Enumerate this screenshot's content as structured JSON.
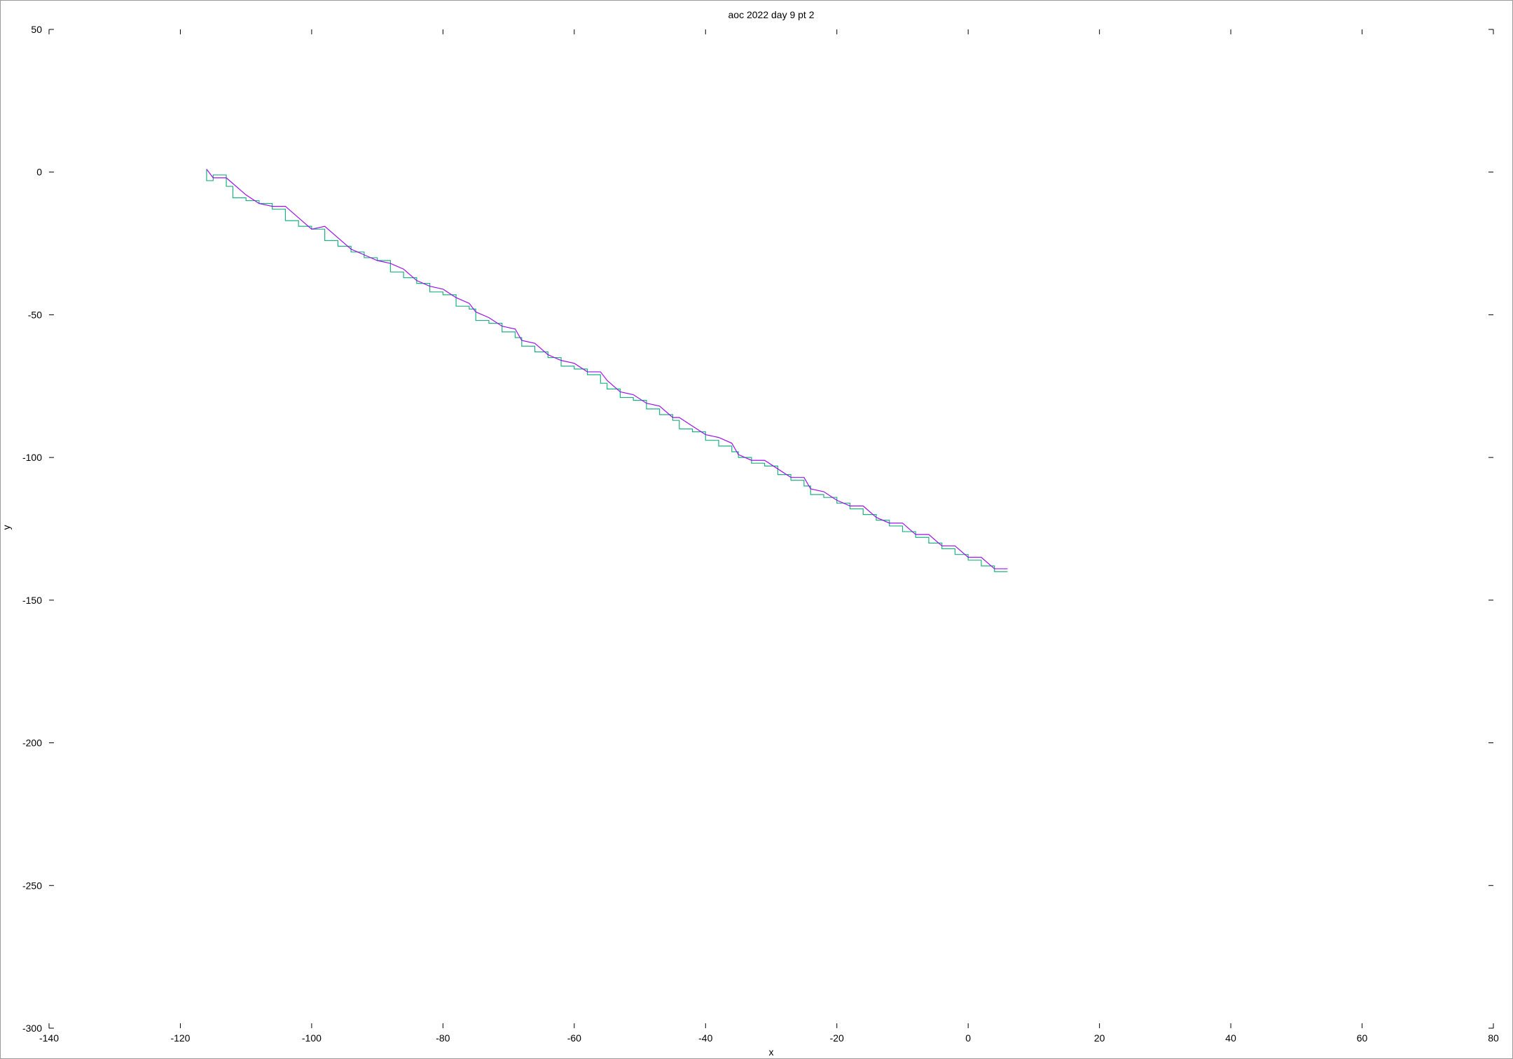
{
  "chart_data": {
    "type": "line",
    "title": "aoc 2022 day 9 pt 2",
    "xlabel": "x",
    "ylabel": "y",
    "xlim": [
      -140,
      80
    ],
    "ylim": [
      -300,
      50
    ],
    "xticks": [
      -140,
      -120,
      -100,
      -80,
      -60,
      -40,
      -20,
      0,
      20,
      40,
      60,
      80
    ],
    "yticks": [
      50,
      0,
      -50,
      -100,
      -150,
      -200,
      -250,
      -300
    ],
    "grid": false,
    "legend": "none",
    "colors": {
      "head": "#1db083",
      "tail": "#9a12ea"
    },
    "series": [
      {
        "id": "head",
        "style": "orthogonal-steps",
        "points": [
          [
            -116,
            1
          ],
          [
            -115,
            -3
          ],
          [
            -113,
            -1
          ],
          [
            -112,
            -5
          ],
          [
            -110,
            -9
          ],
          [
            -108,
            -10
          ],
          [
            -106,
            -11
          ],
          [
            -104,
            -13
          ],
          [
            -102,
            -17
          ],
          [
            -100,
            -19
          ],
          [
            -98,
            -20
          ],
          [
            -96,
            -24
          ],
          [
            -94,
            -26
          ],
          [
            -92,
            -28
          ],
          [
            -90,
            -30
          ],
          [
            -88,
            -31
          ],
          [
            -86,
            -35
          ],
          [
            -84,
            -37
          ],
          [
            -82,
            -39
          ],
          [
            -80,
            -42
          ],
          [
            -78,
            -43
          ],
          [
            -76,
            -47
          ],
          [
            -75,
            -48
          ],
          [
            -73,
            -52
          ],
          [
            -71,
            -53
          ],
          [
            -69,
            -56
          ],
          [
            -68,
            -58
          ],
          [
            -66,
            -61
          ],
          [
            -64,
            -63
          ],
          [
            -62,
            -65
          ],
          [
            -60,
            -68
          ],
          [
            -58,
            -69
          ],
          [
            -56,
            -71
          ],
          [
            -55,
            -74
          ],
          [
            -53,
            -76
          ],
          [
            -51,
            -79
          ],
          [
            -49,
            -80
          ],
          [
            -47,
            -83
          ],
          [
            -45,
            -85
          ],
          [
            -44,
            -87
          ],
          [
            -42,
            -90
          ],
          [
            -40,
            -91
          ],
          [
            -38,
            -94
          ],
          [
            -36,
            -96
          ],
          [
            -35,
            -98
          ],
          [
            -33,
            -100
          ],
          [
            -31,
            -102
          ],
          [
            -29,
            -103
          ],
          [
            -27,
            -106
          ],
          [
            -25,
            -108
          ],
          [
            -24,
            -110
          ],
          [
            -22,
            -113
          ],
          [
            -20,
            -114
          ],
          [
            -18,
            -116
          ],
          [
            -16,
            -118
          ],
          [
            -14,
            -120
          ],
          [
            -12,
            -122
          ],
          [
            -10,
            -124
          ],
          [
            -8,
            -126
          ],
          [
            -6,
            -128
          ],
          [
            -4,
            -130
          ],
          [
            -2,
            -132
          ],
          [
            0,
            -134
          ],
          [
            2,
            -136
          ],
          [
            4,
            -138
          ],
          [
            6,
            -140
          ]
        ]
      },
      {
        "id": "tail",
        "style": "polyline",
        "points": [
          [
            -116,
            1
          ],
          [
            -115,
            -2
          ],
          [
            -113,
            -2
          ],
          [
            -112,
            -4
          ],
          [
            -110,
            -8
          ],
          [
            -108,
            -11
          ],
          [
            -106,
            -12
          ],
          [
            -104,
            -12
          ],
          [
            -102,
            -16
          ],
          [
            -100,
            -20
          ],
          [
            -98,
            -19
          ],
          [
            -96,
            -23
          ],
          [
            -94,
            -27
          ],
          [
            -92,
            -29
          ],
          [
            -90,
            -31
          ],
          [
            -88,
            -32
          ],
          [
            -86,
            -34
          ],
          [
            -84,
            -38
          ],
          [
            -82,
            -40
          ],
          [
            -80,
            -41
          ],
          [
            -78,
            -44
          ],
          [
            -76,
            -46
          ],
          [
            -75,
            -49
          ],
          [
            -73,
            -51
          ],
          [
            -71,
            -54
          ],
          [
            -69,
            -55
          ],
          [
            -68,
            -59
          ],
          [
            -66,
            -60
          ],
          [
            -64,
            -64
          ],
          [
            -62,
            -66
          ],
          [
            -60,
            -67
          ],
          [
            -58,
            -70
          ],
          [
            -56,
            -70
          ],
          [
            -55,
            -73
          ],
          [
            -53,
            -77
          ],
          [
            -51,
            -78
          ],
          [
            -49,
            -81
          ],
          [
            -47,
            -82
          ],
          [
            -45,
            -86
          ],
          [
            -44,
            -86
          ],
          [
            -42,
            -89
          ],
          [
            -40,
            -92
          ],
          [
            -38,
            -93
          ],
          [
            -36,
            -95
          ],
          [
            -35,
            -99
          ],
          [
            -33,
            -101
          ],
          [
            -31,
            -101
          ],
          [
            -29,
            -104
          ],
          [
            -27,
            -107
          ],
          [
            -25,
            -107
          ],
          [
            -24,
            -111
          ],
          [
            -22,
            -112
          ],
          [
            -20,
            -115
          ],
          [
            -18,
            -117
          ],
          [
            -16,
            -117
          ],
          [
            -14,
            -121
          ],
          [
            -12,
            -123
          ],
          [
            -10,
            -123
          ],
          [
            -8,
            -127
          ],
          [
            -6,
            -127
          ],
          [
            -4,
            -131
          ],
          [
            -2,
            -131
          ],
          [
            0,
            -135
          ],
          [
            2,
            -135
          ],
          [
            4,
            -139
          ],
          [
            6,
            -139
          ]
        ]
      }
    ]
  }
}
